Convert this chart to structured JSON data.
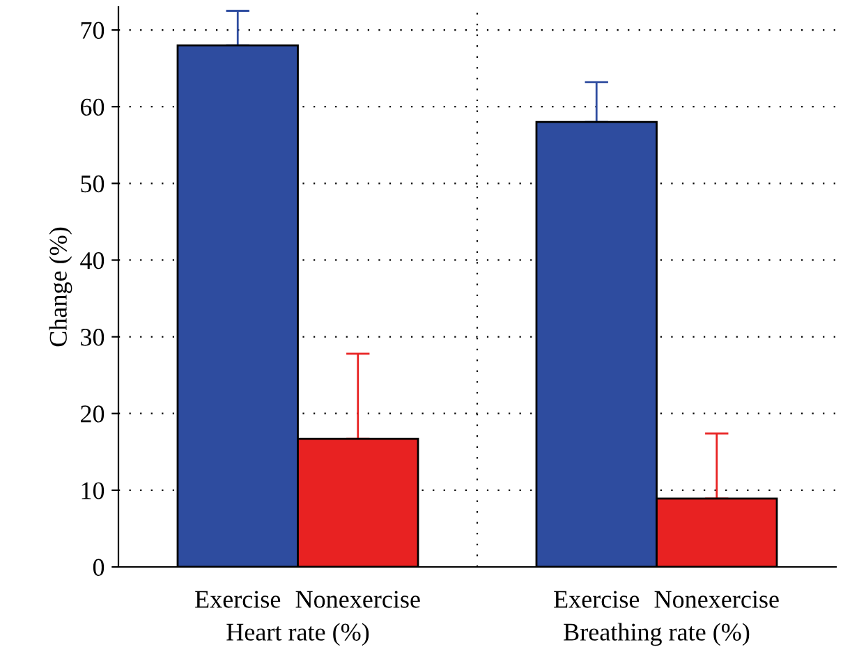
{
  "chart_data": {
    "type": "bar",
    "ylabel": "Change (%)",
    "categories": [
      "Heart rate (%)",
      "Breathing rate (%)"
    ],
    "series": [
      {
        "name": "Exercise",
        "color": "#2e4c9f",
        "values": [
          68,
          58
        ],
        "errors": [
          [
            68,
            72.5
          ],
          [
            58,
            63.2
          ]
        ]
      },
      {
        "name": "Nonexercise",
        "color": "#e82222",
        "values": [
          16.7,
          8.9
        ],
        "errors": [
          [
            16.7,
            27.8
          ],
          [
            8.9,
            17.4
          ]
        ]
      }
    ],
    "ylim": [
      0,
      73
    ],
    "yticks": [
      0,
      10,
      20,
      30,
      40,
      50,
      60,
      70
    ],
    "grid": true,
    "legend": false
  }
}
